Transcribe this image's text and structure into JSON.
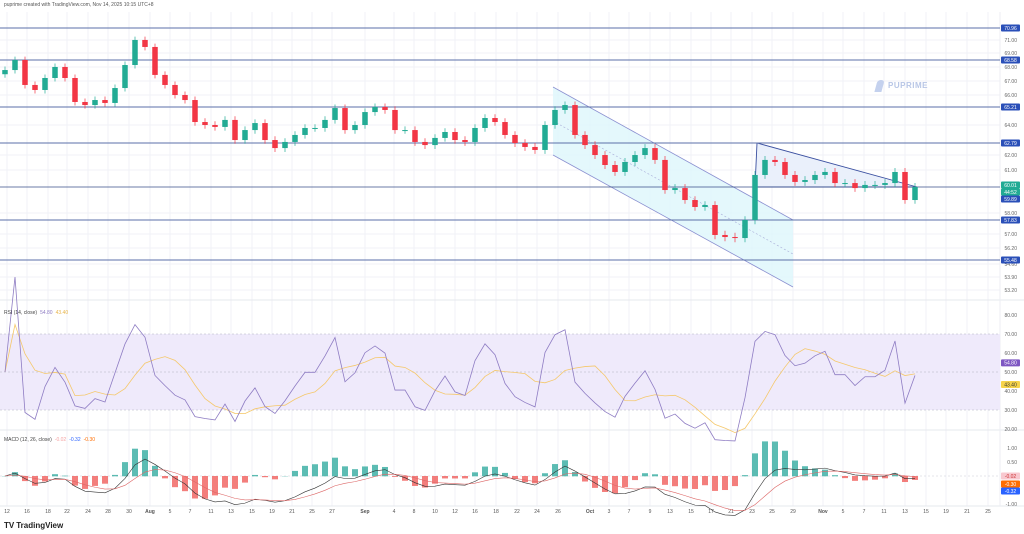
{
  "header": {
    "attribution": "puprime created with TradingView.com, Nov 14, 2025 10:15 UTC+8"
  },
  "watermark": "PUPRIME",
  "footer": {
    "logo_text": "TradingView"
  },
  "colors": {
    "up": "#22ab94",
    "down": "#f23645",
    "level_line": "#5b6fa8",
    "level_badge": "#2a4fb8",
    "last_price_badge": "#22ab94",
    "channel_fill": "#dff7fb",
    "triangle_fill": "#e8eefb",
    "rsi_line": "#8e7cc3",
    "rsi_ma": "#f5c86b",
    "rsi_band": "#efeafb",
    "macd_line": "#2962ff",
    "signal_line": "#ff6d00",
    "hist_up": "#26a69a",
    "hist_down": "#ef5350"
  },
  "chart_data": [
    {
      "type": "candlestick",
      "title": "",
      "close": [
        67.86,
        68.58,
        66.79,
        66.43,
        67.29,
        68.08,
        67.29,
        65.57,
        65.35,
        65.71,
        65.5,
        66.57,
        68.22,
        70.07,
        69.55,
        67.51,
        66.79,
        66.07,
        65.71,
        64.2,
        64.0,
        63.87,
        64.34,
        62.99,
        63.66,
        64.13,
        62.99,
        62.47,
        62.86,
        63.33,
        63.8,
        63.8,
        64.34,
        65.14,
        63.66,
        64.0,
        64.87,
        65.21,
        65.01,
        63.66,
        63.66,
        62.86,
        62.66,
        63.13,
        63.53,
        62.99,
        62.86,
        63.8,
        64.47,
        64.2,
        63.33,
        62.79,
        62.54,
        62.35,
        64.0,
        65.01,
        65.35,
        63.33,
        62.66,
        62.03,
        61.4,
        60.96,
        61.59,
        62.03,
        62.47,
        61.72,
        59.81,
        59.94,
        59.15,
        58.69,
        58.82,
        56.95,
        56.83,
        56.77,
        57.83,
        60.77,
        61.72,
        61.59,
        60.77,
        60.33,
        60.45,
        60.77,
        60.96,
        60.26,
        60.26,
        59.94,
        60.14,
        60.14,
        60.26,
        60.96,
        59.15,
        60.01
      ],
      "x_tick_labels": [
        "12",
        "16",
        "18",
        "22",
        "24",
        "28",
        "30",
        "Aug",
        "5",
        "7",
        "11",
        "13",
        "15",
        "19",
        "21",
        "25",
        "27",
        "Sep",
        "4",
        "8",
        "10",
        "12",
        "16",
        "18",
        "22",
        "24",
        "26",
        "Oct",
        "3",
        "7",
        "9",
        "13",
        "15",
        "17",
        "21",
        "23",
        "25",
        "29",
        "Nov",
        "5",
        "7",
        "11",
        "13",
        "15",
        "19",
        "21",
        "25"
      ],
      "y_tick_labels": [
        "71.00",
        "69.00",
        "68.00",
        "67.00",
        "66.00",
        "64.00",
        "62.00",
        "61.00",
        "58.00",
        "57.00",
        "56.20",
        "54.60",
        "53.90",
        "53.20"
      ],
      "levels": [
        {
          "label": "70.96",
          "value": 70.96
        },
        {
          "label": "68.58",
          "value": 68.58
        },
        {
          "label": "65.21",
          "value": 65.21
        },
        {
          "label": "62.79",
          "value": 62.79
        },
        {
          "label": "57.83",
          "value": 57.83
        },
        {
          "label": "55.48",
          "value": 55.48
        }
      ],
      "last_price": {
        "label": "60.01",
        "value": 60.01,
        "countdown": "44:52"
      },
      "line_level": {
        "label": "59.89",
        "value": 59.89
      },
      "drawings": [
        "descending-channel",
        "descending-triangle"
      ]
    },
    {
      "type": "line",
      "indicator": "RSI",
      "legend": {
        "title": "RSI (14, close)",
        "rsi": "54.80",
        "ma": "43.40"
      },
      "y_tick_labels": [
        "80.00",
        "70.00",
        "60.00",
        "50.00",
        "40.00",
        "30.00",
        "20.00"
      ],
      "band": [
        30,
        70
      ],
      "current": {
        "rsi": 54.8,
        "ma": 43.4
      }
    },
    {
      "type": "bar",
      "indicator": "MACD",
      "legend": {
        "title": "MACD (12, 26, close)",
        "histogram": "-0.02",
        "macd": "-0.32",
        "signal": "-0.30"
      },
      "y_tick_labels": [
        "1.00",
        "0.50",
        "-1.00"
      ],
      "current": {
        "histogram": -0.02,
        "signal": -0.3,
        "macd": -0.32
      }
    }
  ]
}
